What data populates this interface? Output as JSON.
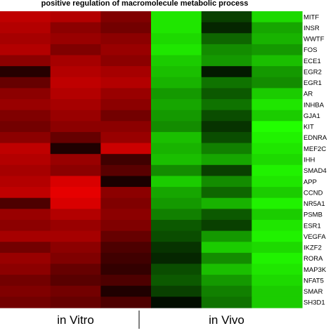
{
  "chart_data": {
    "type": "heatmap",
    "title": "positive regulation of macromolecule metabolic process",
    "columns": [
      "",
      "",
      "",
      "",
      "",
      ""
    ],
    "column_groups": [
      {
        "label": "in Vitro",
        "columns": [
          0,
          1,
          2
        ]
      },
      {
        "label": "in Vivo",
        "columns": [
          3,
          4,
          5
        ]
      }
    ],
    "rows": [
      "MITF",
      "INSR",
      "WWTF",
      "FOS",
      "ECE1",
      "EGR2",
      "EGR1",
      "AR",
      "INHBA",
      "GJA1",
      "KIT",
      "EDNRA",
      "MEF2C",
      "IHH",
      "SMAD4",
      "APP",
      "CCND",
      "NR5A1",
      "PSMB",
      "ESR1",
      "VEGFA",
      "IKZF2",
      "RORA",
      "MAP3K",
      "NFAT5",
      "SMAR",
      "SH3D1"
    ],
    "value_scale": {
      "min": -1,
      "max": 1,
      "low_color": "#22ff00",
      "mid_color": "#000000",
      "high_color": "#ff0000",
      "note": "red = up, green = down"
    },
    "values": [
      [
        0.75,
        0.7,
        0.5,
        -0.9,
        -0.25,
        -0.85
      ],
      [
        0.7,
        0.55,
        0.45,
        -0.9,
        -0.15,
        -0.65
      ],
      [
        0.65,
        0.6,
        0.55,
        -0.85,
        -0.4,
        -0.7
      ],
      [
        0.7,
        0.5,
        0.6,
        -0.9,
        -0.55,
        -0.6
      ],
      [
        0.55,
        0.65,
        0.55,
        -0.8,
        -0.6,
        -0.75
      ],
      [
        0.15,
        0.7,
        0.65,
        -0.75,
        -0.1,
        -0.6
      ],
      [
        0.4,
        0.75,
        0.7,
        -0.7,
        -0.45,
        -0.55
      ],
      [
        0.55,
        0.7,
        0.6,
        -0.6,
        -0.35,
        -0.8
      ],
      [
        0.6,
        0.65,
        0.55,
        -0.65,
        -0.45,
        -0.9
      ],
      [
        0.5,
        0.6,
        0.45,
        -0.6,
        -0.3,
        -0.8
      ],
      [
        0.45,
        0.55,
        0.55,
        -0.55,
        -0.2,
        -1.0
      ],
      [
        0.55,
        0.4,
        0.6,
        -0.75,
        -0.3,
        -0.95
      ],
      [
        0.75,
        0.12,
        0.8,
        -0.7,
        -0.5,
        -0.9
      ],
      [
        0.7,
        0.6,
        0.25,
        -0.75,
        -0.65,
        -0.85
      ],
      [
        0.65,
        0.55,
        0.35,
        -0.55,
        -0.25,
        -0.95
      ],
      [
        0.7,
        0.85,
        0.1,
        -0.8,
        -0.55,
        -0.9
      ],
      [
        0.75,
        0.9,
        0.55,
        -0.65,
        -0.4,
        -0.8
      ],
      [
        0.3,
        0.85,
        0.5,
        -0.6,
        -0.7,
        -0.95
      ],
      [
        0.6,
        0.7,
        0.55,
        -0.5,
        -0.35,
        -0.8
      ],
      [
        0.55,
        0.6,
        0.5,
        -0.35,
        -0.25,
        -0.9
      ],
      [
        0.65,
        0.65,
        0.4,
        -0.3,
        -0.6,
        -0.95
      ],
      [
        0.45,
        0.55,
        0.3,
        -0.2,
        -0.8,
        -0.85
      ],
      [
        0.6,
        0.5,
        0.25,
        -0.15,
        -0.55,
        -0.95
      ],
      [
        0.55,
        0.4,
        0.2,
        -0.3,
        -0.75,
        -0.9
      ],
      [
        0.45,
        0.35,
        0.3,
        -0.35,
        -0.6,
        -0.85
      ],
      [
        0.5,
        0.45,
        0.12,
        -0.25,
        -0.5,
        -0.8
      ],
      [
        0.45,
        0.4,
        0.3,
        -0.05,
        -0.45,
        -0.8
      ]
    ]
  }
}
